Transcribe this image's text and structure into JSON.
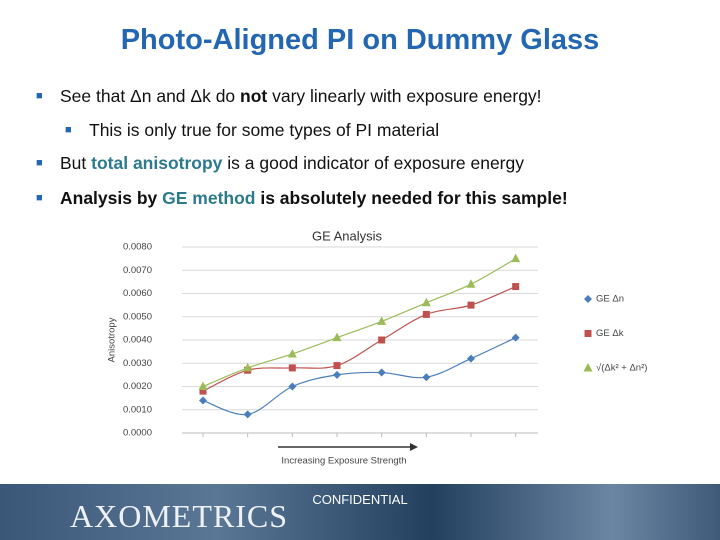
{
  "title": "Photo-Aligned PI on Dummy Glass",
  "bullets": [
    {
      "parts": [
        "See that Δn and Δk do ",
        "not",
        " vary linearly with exposure energy!"
      ]
    },
    {
      "parts": [
        "This is only true for some types of PI material"
      ]
    },
    {
      "parts": [
        "But ",
        "total anisotropy",
        " is a good indicator of exposure energy"
      ]
    },
    {
      "parts": [
        "Analysis by ",
        "GE method",
        " is absolutely needed for this sample!"
      ]
    }
  ],
  "chart_data": {
    "type": "scatter",
    "title": "GE Analysis",
    "y_label": "Anisotropy",
    "x_label": "Increasing Exposure Strength",
    "categories": [
      null,
      null,
      null,
      null,
      null,
      null,
      null,
      null
    ],
    "series": [
      {
        "name": "GE Δn",
        "color": "#4a7ebb",
        "marker": "diamond",
        "values": [
          0.0014,
          0.0008,
          0.002,
          0.0025,
          0.0026,
          0.0024,
          0.0032,
          0.0041
        ]
      },
      {
        "name": "GE Δk",
        "color": "#c0504d",
        "marker": "square",
        "values": [
          0.0018,
          0.0027,
          0.0028,
          0.0029,
          0.004,
          0.0051,
          0.0055,
          0.0063
        ]
      },
      {
        "name": "√(Δk² + Δn²)",
        "color": "#9bbb59",
        "marker": "triangle",
        "values": [
          0.002,
          0.0028,
          0.0034,
          0.0041,
          0.0048,
          0.0056,
          0.0064,
          0.0075
        ]
      }
    ],
    "ylim": [
      0,
      0.008
    ],
    "yticks": [
      {
        "value": 0,
        "label": "0.0000"
      },
      {
        "value": 0.001,
        "label": "0.0010"
      },
      {
        "value": 0.002,
        "label": "0.0020"
      },
      {
        "value": 0.003,
        "label": "0.0030"
      },
      {
        "value": 0.004,
        "label": "0.0040"
      },
      {
        "value": 0.005,
        "label": "0.0050"
      },
      {
        "value": 0.006,
        "label": "0.0060"
      },
      {
        "value": 0.007,
        "label": "0.0070"
      },
      {
        "value": 0.008,
        "label": "0.0080"
      }
    ],
    "grid": true
  },
  "footer": "CONFIDENTIAL",
  "logo": "AXOMETRICS"
}
